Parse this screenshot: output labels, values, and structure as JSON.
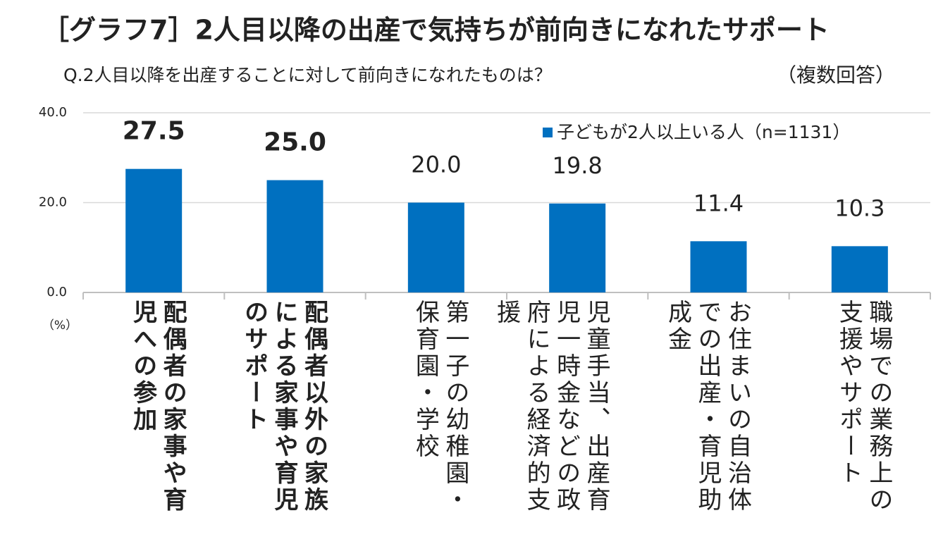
{
  "chart_data": {
    "type": "bar",
    "title": "［グラフ7］2人目以降の出産で気持ちが前向きになれたサポート",
    "subtitle": "Q.2人目以降を出産することに対して前向きになれたものは？",
    "note": "（複数回答）",
    "y_unit": "（%）",
    "categories": [
      "配偶者の家事や育児への参加",
      "配偶者以外の家族による家事や育児のサポート",
      "第一子の幼稚園・保育園・学校",
      "児童手当、出産育児一時金などの政府による経済的支援",
      "お住まいの自治体での出産・育児助成金",
      "職場での業務上の支援やサポート"
    ],
    "series": [
      {
        "name": "子どもが2人以上いる人（n=1131）",
        "color": "#0070c0",
        "values": [
          27.5,
          25.0,
          20.0,
          19.8,
          11.4,
          10.3
        ],
        "value_labels": [
          "27.5",
          "25.0",
          "20.0",
          "19.8",
          "11.4",
          "10.3"
        ]
      }
    ],
    "ylim": [
      0,
      40
    ],
    "yticks": [
      {
        "value": 0,
        "label": "0.0"
      },
      {
        "value": 20,
        "label": "20.0"
      },
      {
        "value": 40,
        "label": "40.0"
      }
    ],
    "grid": true
  }
}
